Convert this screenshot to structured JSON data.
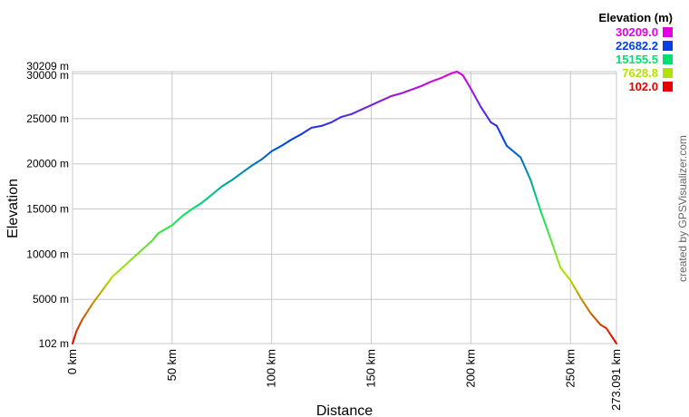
{
  "chart_data": {
    "type": "line",
    "xlabel": "Distance",
    "ylabel": "Elevation",
    "xlim": [
      0,
      273.091
    ],
    "ylim": [
      102,
      30209
    ],
    "x_ticks": [
      {
        "value": 0,
        "label": "0 km"
      },
      {
        "value": 50,
        "label": "50 km"
      },
      {
        "value": 100,
        "label": "100 km"
      },
      {
        "value": 150,
        "label": "150 km"
      },
      {
        "value": 200,
        "label": "200 km"
      },
      {
        "value": 250,
        "label": "250 km"
      },
      {
        "value": 273.091,
        "label": "273.091 km"
      }
    ],
    "y_ticks": [
      {
        "value": 102,
        "label": "102 m"
      },
      {
        "value": 5000,
        "label": "5000 m"
      },
      {
        "value": 10000,
        "label": "10000 m"
      },
      {
        "value": 15000,
        "label": "15000 m"
      },
      {
        "value": 20000,
        "label": "20000 m"
      },
      {
        "value": 25000,
        "label": "25000 m"
      },
      {
        "value": 30000,
        "label": "30000 m"
      },
      {
        "value": 30209,
        "label": "30209 m"
      }
    ],
    "grid": true,
    "legend": {
      "title": "Elevation (m)",
      "placement": "top-right",
      "entries": [
        {
          "label": "30209.0",
          "color": "#e400e4"
        },
        {
          "label": "22682.2",
          "color": "#0040e4"
        },
        {
          "label": "15155.5",
          "color": "#00e070"
        },
        {
          "label": "7628.8",
          "color": "#b0e400"
        },
        {
          "label": "102.0",
          "color": "#e40000"
        }
      ]
    },
    "x": [
      0,
      2,
      5,
      10,
      15,
      20,
      25,
      30,
      35,
      40,
      43,
      46,
      50,
      55,
      60,
      65,
      70,
      75,
      80,
      85,
      90,
      95,
      100,
      105,
      110,
      115,
      120,
      125,
      130,
      135,
      140,
      145,
      150,
      155,
      160,
      165,
      170,
      175,
      180,
      185,
      190,
      193,
      196,
      200,
      205,
      210,
      213,
      218,
      225,
      230,
      235,
      240,
      245,
      250,
      255,
      260,
      265,
      268,
      273.091
    ],
    "y": [
      102,
      1500,
      2800,
      4500,
      6000,
      7500,
      8500,
      9500,
      10500,
      11500,
      12300,
      12700,
      13200,
      14200,
      15000,
      15700,
      16600,
      17500,
      18200,
      19000,
      19800,
      20500,
      21400,
      22000,
      22700,
      23300,
      24000,
      24200,
      24600,
      25200,
      25500,
      26000,
      26500,
      27000,
      27500,
      27800,
      28200,
      28600,
      29100,
      29500,
      30000,
      30209,
      29800,
      28300,
      26300,
      24600,
      24200,
      22000,
      20700,
      18200,
      14800,
      11700,
      8500,
      7100,
      5200,
      3500,
      2200,
      1800,
      102
    ]
  },
  "credit": "created by GPSVisualizer.com"
}
